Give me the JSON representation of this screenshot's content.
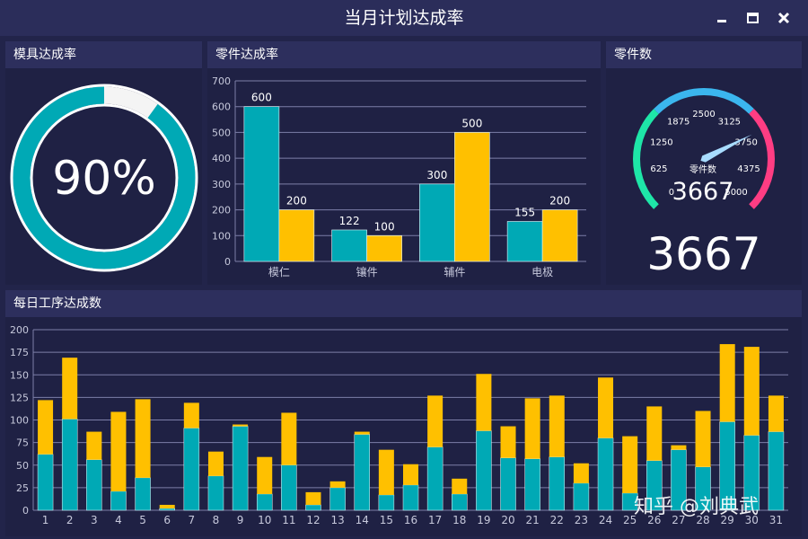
{
  "window": {
    "title": "当月计划达成率"
  },
  "panels": {
    "mold": {
      "title": "模具达成率",
      "percent": 90,
      "percent_label": "90%"
    },
    "parts": {
      "title": "零件达成率"
    },
    "count": {
      "title": "零件数",
      "gauge_label": "零件数",
      "value_label": "3667",
      "big_value": "3667"
    },
    "daily": {
      "title": "每日工序达成数"
    }
  },
  "colors": {
    "teal": "#00a9b5",
    "yellow": "#ffc000",
    "gauge_blue": "#3bb6ee",
    "gauge_green": "#1ee6a8",
    "gauge_pink": "#ff3d83"
  },
  "icons": [
    "minimize-icon",
    "maximize-icon",
    "close-icon"
  ],
  "watermark": "知乎 @刘典武",
  "chart_data": [
    {
      "type": "pie",
      "values": [
        90,
        10
      ],
      "label": "90%"
    },
    {
      "type": "bar",
      "categories": [
        "模仁",
        "镶件",
        "辅件",
        "电极"
      ],
      "series": [
        {
          "values": [
            600,
            122,
            300,
            155
          ]
        },
        {
          "values": [
            200,
            100,
            500,
            200
          ]
        }
      ],
      "ylim": [
        0,
        700
      ],
      "yticks": [
        "0",
        "100",
        "200",
        "300",
        "400",
        "500",
        "600",
        "700"
      ],
      "grid": true
    },
    {
      "type": "gauge",
      "min": 0,
      "max": 5000,
      "value": 3667,
      "ticks": [
        "0",
        "625",
        "1250",
        "1875",
        "2500",
        "3125",
        "3750",
        "4375",
        "5000"
      ]
    },
    {
      "type": "bar",
      "stacked": true,
      "categories": [
        "1",
        "2",
        "3",
        "4",
        "5",
        "6",
        "7",
        "8",
        "9",
        "10",
        "11",
        "12",
        "13",
        "14",
        "15",
        "16",
        "17",
        "18",
        "19",
        "20",
        "21",
        "22",
        "23",
        "24",
        "25",
        "26",
        "27",
        "28",
        "29",
        "30",
        "31"
      ],
      "series": [
        {
          "values": [
            62,
            101,
            56,
            21,
            36,
            2,
            91,
            38,
            93,
            18,
            50,
            6,
            25,
            84,
            17,
            28,
            70,
            18,
            88,
            58,
            57,
            59,
            30,
            80,
            19,
            55,
            67,
            48,
            98,
            83,
            87
          ]
        },
        {
          "values": [
            60,
            68,
            31,
            88,
            87,
            4,
            28,
            27,
            2,
            41,
            58,
            14,
            7,
            3,
            50,
            23,
            57,
            17,
            63,
            35,
            67,
            68,
            22,
            67,
            63,
            60,
            5,
            62,
            86,
            98,
            40
          ]
        }
      ],
      "ylim": [
        0,
        200
      ],
      "yticks": [
        "0",
        "25",
        "50",
        "75",
        "100",
        "125",
        "150",
        "175",
        "200"
      ],
      "grid": true
    }
  ]
}
